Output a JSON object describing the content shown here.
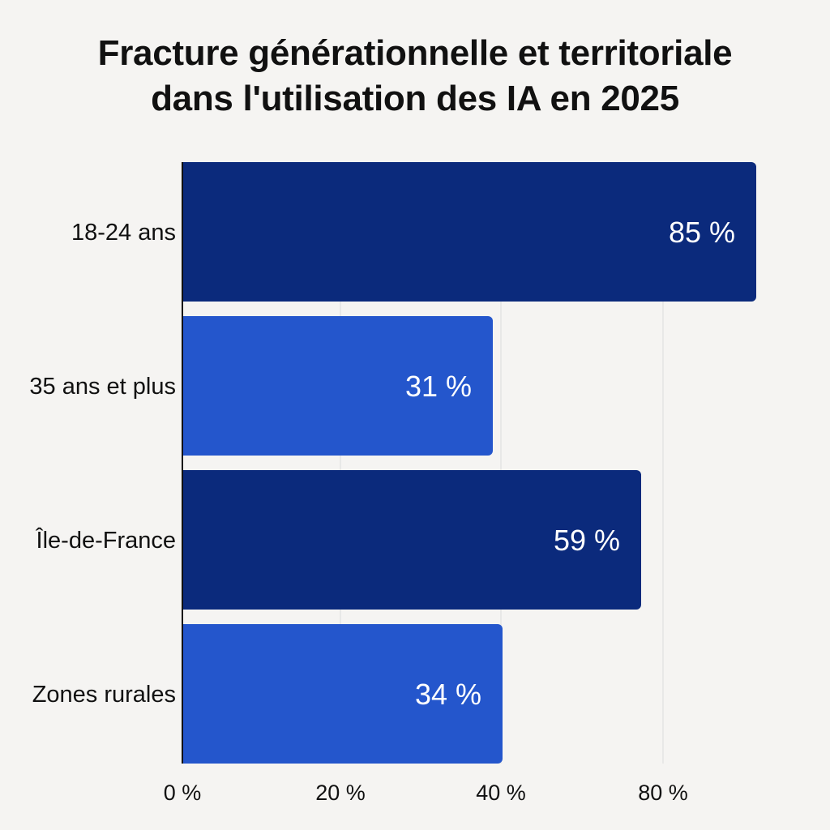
{
  "chart_data": {
    "type": "bar",
    "orientation": "horizontal",
    "title": "Fracture générationnelle et territoriale dans l'utilisation des IA en 2025",
    "title_lines": [
      "Fracture générationnelle et territoriale",
      "dans l'utilisation des IA en 2025"
    ],
    "categories": [
      "18-24 ans",
      "35 ans et plus",
      "Île-de-France",
      "Zones rurales"
    ],
    "values": [
      85,
      31,
      59,
      34
    ],
    "value_labels": [
      "85 %",
      "31 %",
      "59 %",
      "34 %"
    ],
    "bar_colors": [
      "#0b2a7c",
      "#2456cc",
      "#0b2a7c",
      "#2456cc"
    ],
    "x_ticks": [
      {
        "label": "0 %",
        "value": 0
      },
      {
        "label": "20 %",
        "value": 20
      },
      {
        "label": "40 %",
        "value": 40
      },
      {
        "label": "80 %",
        "value": 80
      }
    ],
    "x_tick_positions_note": "tick labels as printed; the original axis is non-linear",
    "xlabel": "",
    "ylabel": "",
    "grid": true
  }
}
